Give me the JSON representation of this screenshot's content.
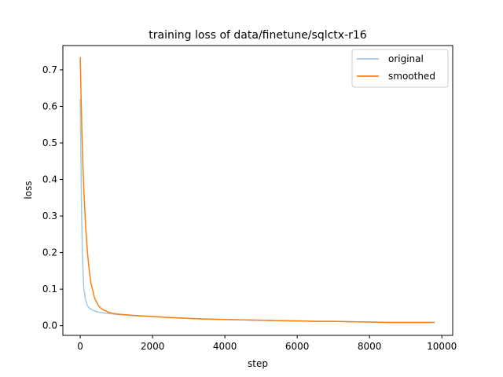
{
  "chart_data": {
    "type": "line",
    "title": "training loss of data/finetune/sqlctx-r16",
    "xlabel": "step",
    "ylabel": "loss",
    "xlim": [
      -480,
      10300
    ],
    "ylim": [
      -0.0265,
      0.7665
    ],
    "xticks": [
      0,
      2000,
      4000,
      6000,
      8000,
      10000
    ],
    "yticks": [
      0.0,
      0.1,
      0.2,
      0.3,
      0.4,
      0.5,
      0.6,
      0.7
    ],
    "xtick_labels": [
      "0",
      "2000",
      "4000",
      "6000",
      "8000",
      "10000"
    ],
    "ytick_labels": [
      "0.0",
      "0.1",
      "0.2",
      "0.3",
      "0.4",
      "0.5",
      "0.6",
      "0.7"
    ],
    "grid": false,
    "legend": {
      "position": "top-right",
      "entries": [
        "original",
        "smoothed"
      ]
    },
    "series": [
      {
        "name": "original",
        "color": "#a6c8e0",
        "x": [
          0,
          20,
          40,
          60,
          80,
          100,
          150,
          200,
          250,
          300,
          400,
          500,
          700,
          1000,
          1500,
          2000,
          2500,
          3000,
          3500,
          4000,
          4500,
          5000,
          5500,
          6000,
          6500,
          7000,
          7500,
          8000,
          8500,
          9000,
          9500,
          9800
        ],
        "values": [
          0.62,
          0.45,
          0.3,
          0.2,
          0.14,
          0.1,
          0.07,
          0.055,
          0.048,
          0.045,
          0.04,
          0.037,
          0.034,
          0.031,
          0.027,
          0.025,
          0.022,
          0.02,
          0.018,
          0.017,
          0.016,
          0.015,
          0.014,
          0.013,
          0.012,
          0.012,
          0.011,
          0.01,
          0.009,
          0.009,
          0.009,
          0.009
        ]
      },
      {
        "name": "smoothed",
        "color": "#ff7f0e",
        "x": [
          0,
          25,
          50,
          75,
          100,
          150,
          200,
          250,
          300,
          400,
          500,
          600,
          800,
          1000,
          1500,
          2000,
          2500,
          3000,
          3500,
          4000,
          4500,
          5000,
          5500,
          6000,
          6500,
          7000,
          7500,
          8000,
          8500,
          9000,
          9500,
          9800
        ],
        "values": [
          0.735,
          0.62,
          0.52,
          0.44,
          0.37,
          0.27,
          0.2,
          0.15,
          0.115,
          0.075,
          0.055,
          0.045,
          0.036,
          0.032,
          0.028,
          0.025,
          0.022,
          0.02,
          0.018,
          0.017,
          0.016,
          0.015,
          0.014,
          0.013,
          0.012,
          0.012,
          0.011,
          0.01,
          0.009,
          0.009,
          0.009,
          0.009
        ]
      }
    ]
  }
}
